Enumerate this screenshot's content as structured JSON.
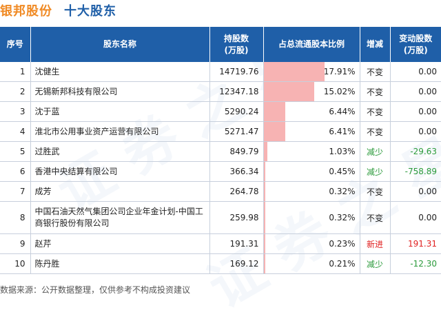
{
  "title": {
    "company": "银邦股份",
    "subtitle": "十大股东"
  },
  "headers": {
    "index": "序号",
    "name": "股东名称",
    "shares": "持股数\n(万股)",
    "ratio": "占总流通股本比例",
    "change_type": "增减",
    "change_amount": "变动股数\n(万股)"
  },
  "colors": {
    "header_bg": "#1f5fa8",
    "bar": "#f7b3b3",
    "decrease": "#2a9a3a",
    "increase": "#e02020",
    "company_title": "#f08a24"
  },
  "chart_data": {
    "type": "table",
    "title": "银邦股份 十大股东",
    "columns": [
      "序号",
      "股东名称",
      "持股数(万股)",
      "占总流通股本比例",
      "增减",
      "变动股数(万股)"
    ],
    "rows": [
      {
        "index": "1",
        "name": "沈健生",
        "shares": "14719.76",
        "ratio": "17.91%",
        "ratio_value": 17.91,
        "change_type": "不变",
        "change_amount": "0.00",
        "status": "unchanged"
      },
      {
        "index": "2",
        "name": "无锡新邦科技有限公司",
        "shares": "12347.18",
        "ratio": "15.02%",
        "ratio_value": 15.02,
        "change_type": "不变",
        "change_amount": "0.00",
        "status": "unchanged"
      },
      {
        "index": "3",
        "name": "沈于蓝",
        "shares": "5290.24",
        "ratio": "6.44%",
        "ratio_value": 6.44,
        "change_type": "不变",
        "change_amount": "0.00",
        "status": "unchanged"
      },
      {
        "index": "4",
        "name": "淮北市公用事业资产运营有限公司",
        "shares": "5271.47",
        "ratio": "6.41%",
        "ratio_value": 6.41,
        "change_type": "不变",
        "change_amount": "0.00",
        "status": "unchanged"
      },
      {
        "index": "5",
        "name": "过胜武",
        "shares": "849.79",
        "ratio": "1.03%",
        "ratio_value": 1.03,
        "change_type": "减少",
        "change_amount": "-29.63",
        "status": "decrease"
      },
      {
        "index": "6",
        "name": "香港中央结算有限公司",
        "shares": "366.34",
        "ratio": "0.45%",
        "ratio_value": 0.45,
        "change_type": "减少",
        "change_amount": "-758.89",
        "status": "decrease"
      },
      {
        "index": "7",
        "name": "成芳",
        "shares": "264.78",
        "ratio": "0.32%",
        "ratio_value": 0.32,
        "change_type": "不变",
        "change_amount": "0.00",
        "status": "unchanged"
      },
      {
        "index": "8",
        "name": "中国石油天然气集团公司企业年金计划-中国工商银行股份有限公司",
        "shares": "259.98",
        "ratio": "0.32%",
        "ratio_value": 0.32,
        "change_type": "不变",
        "change_amount": "0.00",
        "status": "unchanged"
      },
      {
        "index": "9",
        "name": "赵芹",
        "shares": "191.31",
        "ratio": "0.23%",
        "ratio_value": 0.23,
        "change_type": "新进",
        "change_amount": "191.31",
        "status": "new"
      },
      {
        "index": "10",
        "name": "陈丹胜",
        "shares": "169.12",
        "ratio": "0.21%",
        "ratio_value": 0.21,
        "change_type": "减少",
        "change_amount": "-12.30",
        "status": "decrease"
      }
    ]
  },
  "footer": "数据来源：公开数据整理，仅供参考不构成投资建议"
}
